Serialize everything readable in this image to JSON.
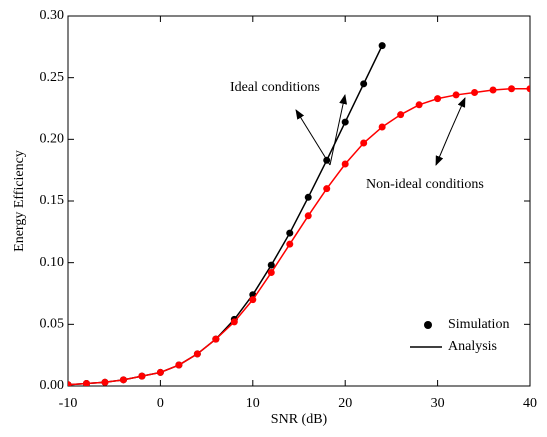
{
  "chart_data": {
    "type": "line",
    "xlabel": "SNR (dB)",
    "ylabel": "Energy Efficiency",
    "xlim": [
      -10,
      40
    ],
    "xticks": [
      -10,
      0,
      10,
      20,
      30,
      40
    ],
    "ylim": [
      0,
      0.3
    ],
    "yticks": [
      {
        "value": 0,
        "label": "0.00"
      },
      {
        "value": 0.05,
        "label": "0.05"
      },
      {
        "value": 0.1,
        "label": "0.10"
      },
      {
        "value": 0.15,
        "label": "0.15"
      },
      {
        "value": 0.2,
        "label": "0.20"
      },
      {
        "value": 0.25,
        "label": "0.25"
      },
      {
        "value": 0.3,
        "label": "0.30"
      }
    ],
    "legend": [
      "Simulation",
      "Analysis"
    ],
    "annotations": [
      "Ideal conditions",
      "Non-ideal conditions"
    ],
    "series": [
      {
        "color": "#000000",
        "x": [
          -10,
          -8,
          -6,
          -4,
          -2,
          0,
          2,
          4,
          6,
          8,
          10,
          12,
          14,
          16,
          18,
          20,
          22,
          24
        ],
        "values": [
          0.001,
          0.002,
          0.003,
          0.005,
          0.008,
          0.011,
          0.017,
          0.026,
          0.038,
          0.054,
          0.074,
          0.098,
          0.124,
          0.153,
          0.183,
          0.214,
          0.245,
          0.276
        ]
      },
      {
        "color": "#ff0000",
        "x": [
          -10,
          -8,
          -6,
          -4,
          -2,
          0,
          2,
          4,
          6,
          8,
          10,
          12,
          14,
          16,
          18,
          20,
          22,
          24,
          26,
          28,
          30,
          32,
          34,
          36,
          38,
          40
        ],
        "values": [
          0.001,
          0.002,
          0.003,
          0.005,
          0.008,
          0.011,
          0.017,
          0.026,
          0.038,
          0.052,
          0.07,
          0.092,
          0.115,
          0.138,
          0.16,
          0.18,
          0.197,
          0.21,
          0.22,
          0.228,
          0.233,
          0.236,
          0.238,
          0.24,
          0.241,
          0.241
        ]
      }
    ]
  }
}
